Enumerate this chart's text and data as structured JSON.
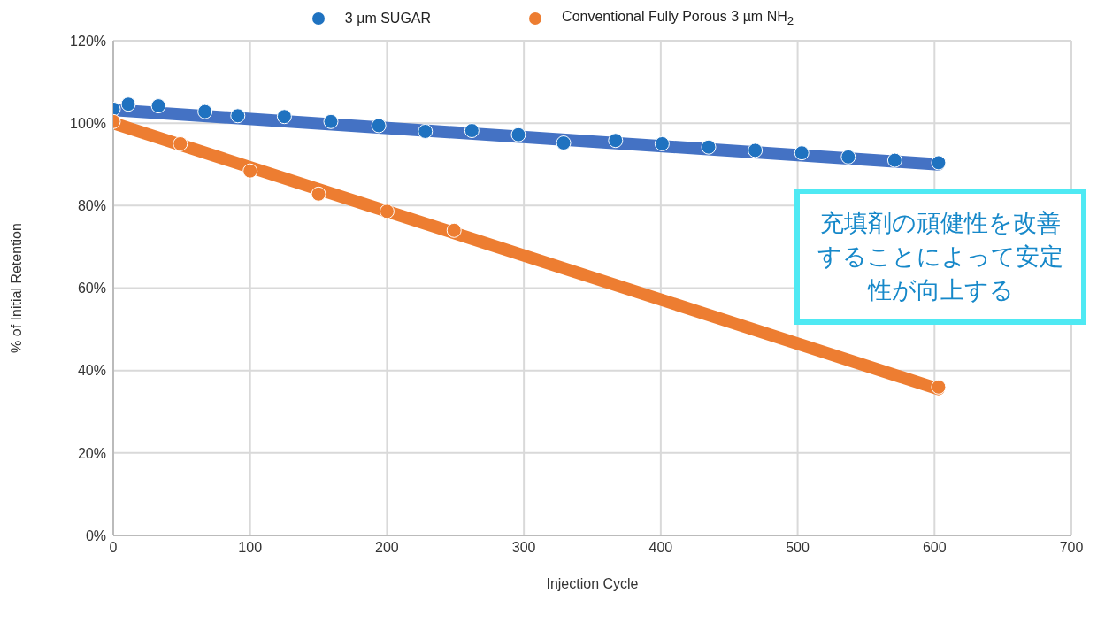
{
  "chart_data": {
    "type": "scatter",
    "xlabel": "Injection Cycle",
    "ylabel": "% of Initial Retention",
    "xlim": [
      0,
      700
    ],
    "xticks": [
      0,
      100,
      200,
      300,
      400,
      500,
      600,
      700
    ],
    "ylim": [
      0,
      120
    ],
    "yticks": [
      {
        "value": 0,
        "label": "0%"
      },
      {
        "value": 20,
        "label": "20%"
      },
      {
        "value": 40,
        "label": "40%"
      },
      {
        "value": 60,
        "label": "60%"
      },
      {
        "value": 80,
        "label": "80%"
      },
      {
        "value": 100,
        "label": "100%"
      },
      {
        "value": 120,
        "label": "120%"
      }
    ],
    "grid": true,
    "legend": "top",
    "marker": "circle",
    "annotations": [
      "充填剤の頑健性を改善することによって安定性が向上する"
    ],
    "series": [
      {
        "name": "3 µm SUGAR",
        "color": "#1f72c0",
        "x": [
          0,
          11,
          33,
          67,
          91,
          125,
          159,
          194,
          228,
          262,
          296,
          329,
          367,
          401,
          435,
          469,
          503,
          537,
          571,
          603
        ],
        "values": [
          103.4,
          104.6,
          104.2,
          102.8,
          101.8,
          101.6,
          100.4,
          99.4,
          98,
          98.2,
          97.2,
          95.2,
          95.8,
          95,
          94.2,
          93.4,
          92.8,
          91.8,
          91,
          90.4
        ]
      },
      {
        "name": "Conventional Fully Porous 3 µm NH$_{2}$",
        "color": "#ed7d31",
        "x": [
          0,
          49,
          100,
          150,
          200,
          249,
          603
        ],
        "values": [
          100.4,
          95,
          88.4,
          82.8,
          78.6,
          74,
          36
        ]
      },
      {
        "type": "line",
        "color": "#4472c4",
        "marker": "none",
        "x": [
          0,
          603
        ],
        "values": [
          103.2,
          90
        ]
      },
      {
        "type": "line",
        "color": "#ed7d31",
        "marker": "none",
        "x": [
          0,
          603
        ],
        "values": [
          100,
          35.5
        ]
      }
    ]
  }
}
